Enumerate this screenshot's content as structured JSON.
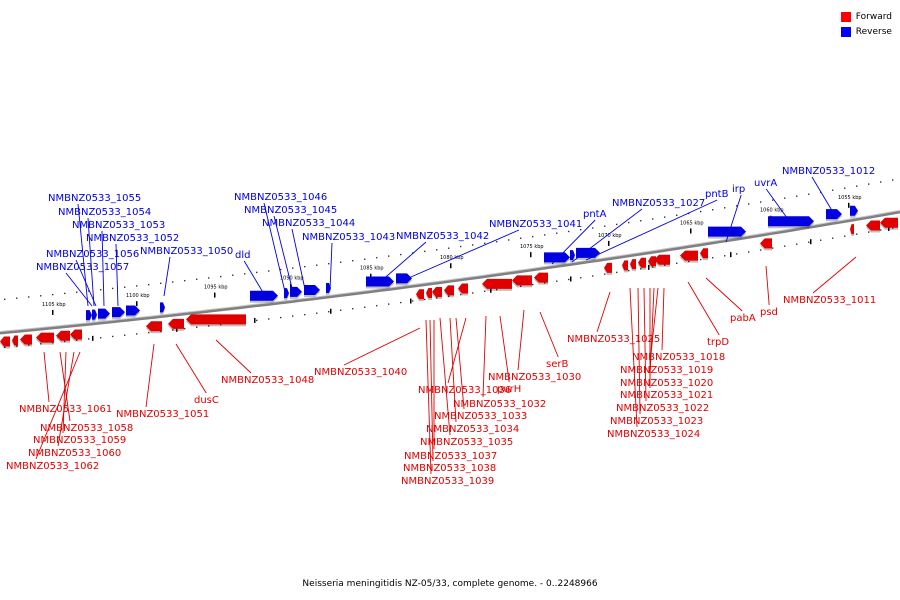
{
  "legend": [
    {
      "label": "Forward",
      "color": "#ff0000"
    },
    {
      "label": "Reverse",
      "color": "#0000ff"
    }
  ],
  "caption": "Neisseria meningitidis NZ-05/33, complete genome. - 0..2248966",
  "colors": {
    "forward": "#e00000",
    "reverse": "#0000e0",
    "axis": "#808080"
  },
  "ticks": [
    "1105 kbp",
    "1100 kbp",
    "1095 kbp",
    "1090 kbp",
    "1085 kbp",
    "1080 kbp",
    "1075 kbp",
    "1070 kbp",
    "1065 kbp",
    "1060 kbp",
    "1055 kbp"
  ],
  "reverse_labels": [
    "NMBNZ0533_1055",
    "NMBNZ0533_1054",
    "NMBNZ0533_1053",
    "NMBNZ0533_1052",
    "NMBNZ0533_1056",
    "NMBNZ0533_1057",
    "NMBNZ0533_1050",
    "dld",
    "NMBNZ0533_1046",
    "NMBNZ0533_1045",
    "NMBNZ0533_1044",
    "NMBNZ0533_1043",
    "NMBNZ0533_1042",
    "NMBNZ0533_1041",
    "pntA",
    "NMBNZ0533_1027",
    "pntB",
    "irp",
    "uvrA",
    "NMBNZ0533_1012"
  ],
  "forward_labels": [
    "NMBNZ0533_1011",
    "psd",
    "pabA",
    "trpD",
    "NMBNZ0533_1025",
    "NMBNZ0533_1018",
    "NMBNZ0533_1019",
    "NMBNZ0533_1020",
    "NMBNZ0533_1021",
    "NMBNZ0533_1022",
    "NMBNZ0533_1023",
    "NMBNZ0533_1024",
    "serB",
    "NMBNZ0533_1030",
    "purH",
    "NMBNZ0533_1032",
    "NMBNZ0533_1036",
    "NMBNZ0533_1033",
    "NMBNZ0533_1034",
    "NMBNZ0533_1035",
    "NMBNZ0533_1037",
    "NMBNZ0533_1038",
    "NMBNZ0533_1039",
    "NMBNZ0533_1040",
    "NMBNZ0533_1048",
    "dusC",
    "NMBNZ0533_1051",
    "NMBNZ0533_1061",
    "NMBNZ0533_1058",
    "NMBNZ0533_1059",
    "NMBNZ0533_1060",
    "NMBNZ0533_1062"
  ]
}
